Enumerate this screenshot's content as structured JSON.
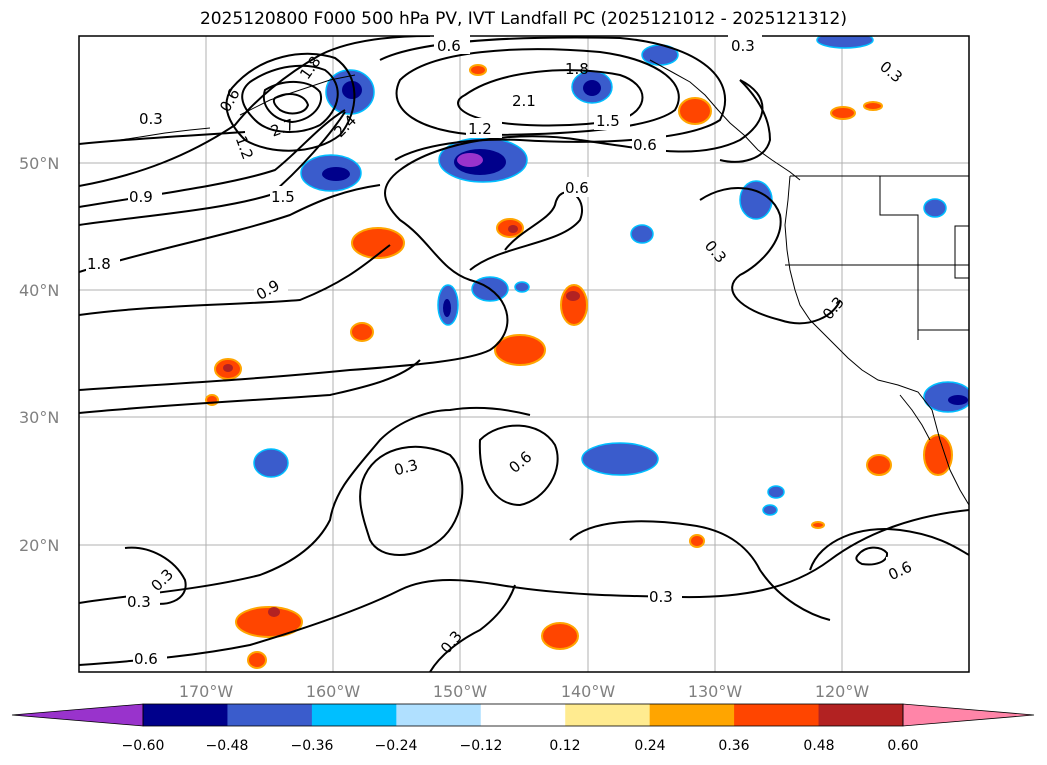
{
  "title": "2025120800 F000 500 hPa PV, IVT Landfall PC (2025121012 - 2025121312)",
  "longitude_labels": [
    "170°W",
    "160°W",
    "150°W",
    "140°W",
    "130°W",
    "120°W"
  ],
  "latitude_labels": [
    "50°N",
    "40°N",
    "30°N",
    "20°N"
  ],
  "contour_labels": [
    "0.3",
    "0.6",
    "0.9",
    "1.2",
    "1.5",
    "1.8",
    "2.1",
    "2.4",
    "2.7"
  ],
  "colorbar": {
    "ticks": [
      "−0.60",
      "−0.48",
      "−0.36",
      "−0.24",
      "−0.12",
      "0.12",
      "0.24",
      "0.36",
      "0.48",
      "0.60"
    ],
    "colors": [
      "#9933cc",
      "#00008b",
      "#3a5ccc",
      "#00bfff",
      "#b0e0ff",
      "#ffffff",
      "#ffeb90",
      "#ffa500",
      "#ff4500",
      "#b22222",
      "#ff85a8"
    ]
  }
}
